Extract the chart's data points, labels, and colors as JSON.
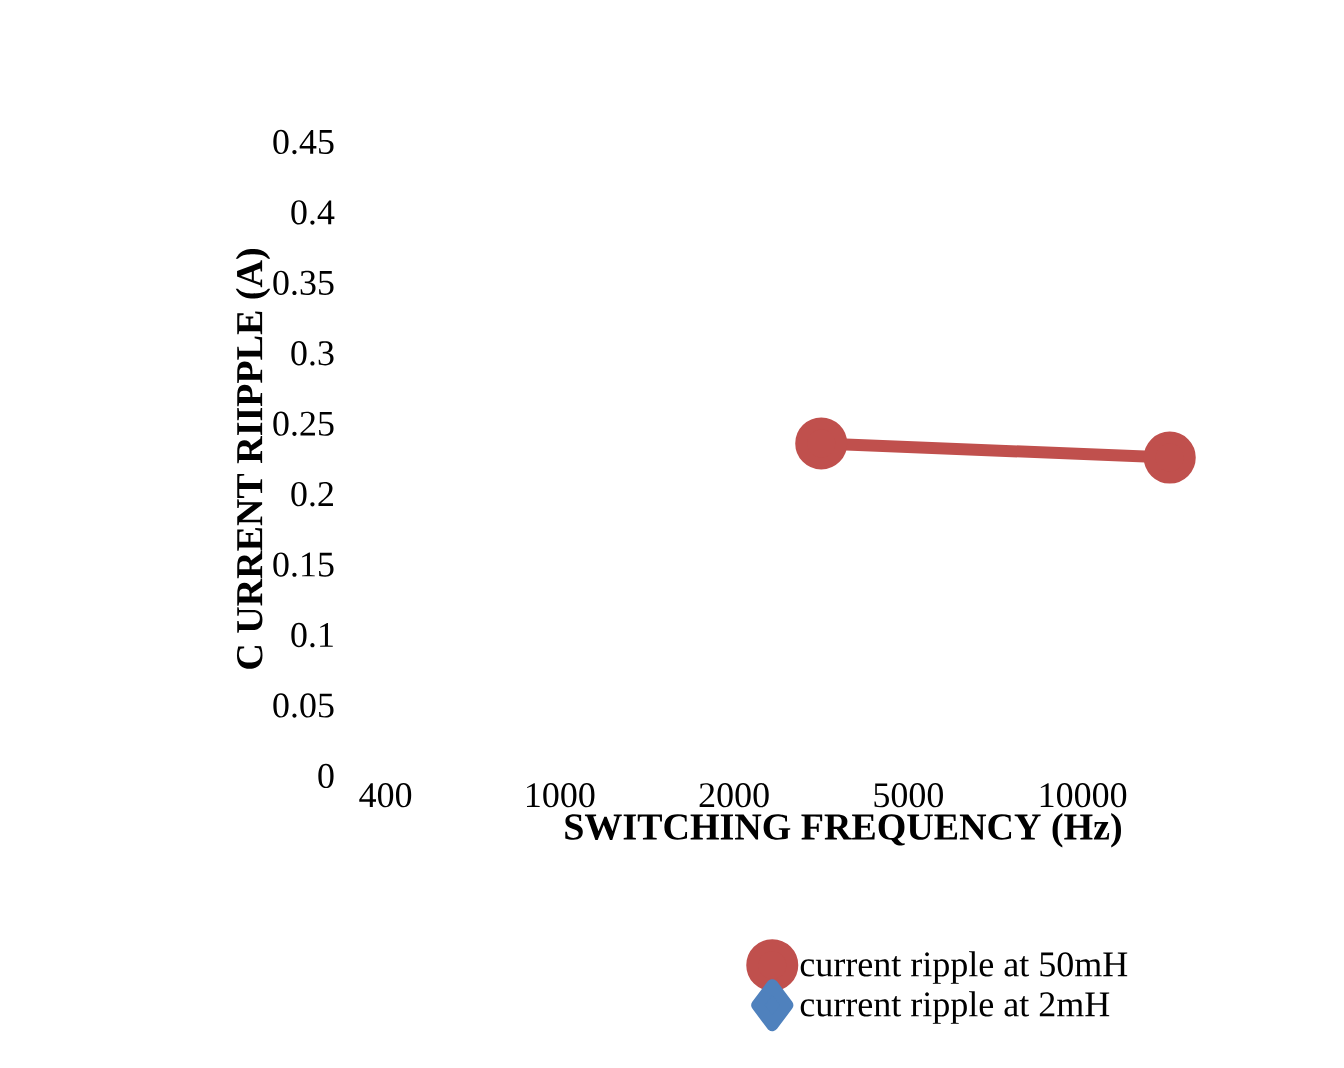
{
  "chart_data": {
    "type": "line",
    "xlabel": "SWITCHING FREQUENCY (Hz)",
    "ylabel": "C URRENT  RIIPPLE (A)",
    "categories": [
      "400",
      null,
      "1000",
      null,
      "2000",
      null,
      "5000",
      null,
      "10000",
      null,
      null
    ],
    "series": [
      {
        "name": "current ripple at 50mH",
        "color": "#c0504d",
        "marker": "circle",
        "values": [
          null,
          null,
          null,
          null,
          null,
          0.236,
          null,
          null,
          null,
          0.226,
          null
        ]
      },
      {
        "name": "current ripple at 2mH",
        "color": "#4f81bd",
        "marker": "diamond",
        "values": [
          null,
          null,
          null,
          null,
          null,
          null,
          null,
          null,
          null,
          null,
          null
        ]
      }
    ],
    "ylim": [
      0,
      0.45
    ],
    "yticks": [
      0,
      0.05,
      0.1,
      0.15,
      0.2,
      0.25,
      0.3,
      0.35,
      0.4,
      0.45
    ],
    "grid": false,
    "legend": "bottom"
  }
}
